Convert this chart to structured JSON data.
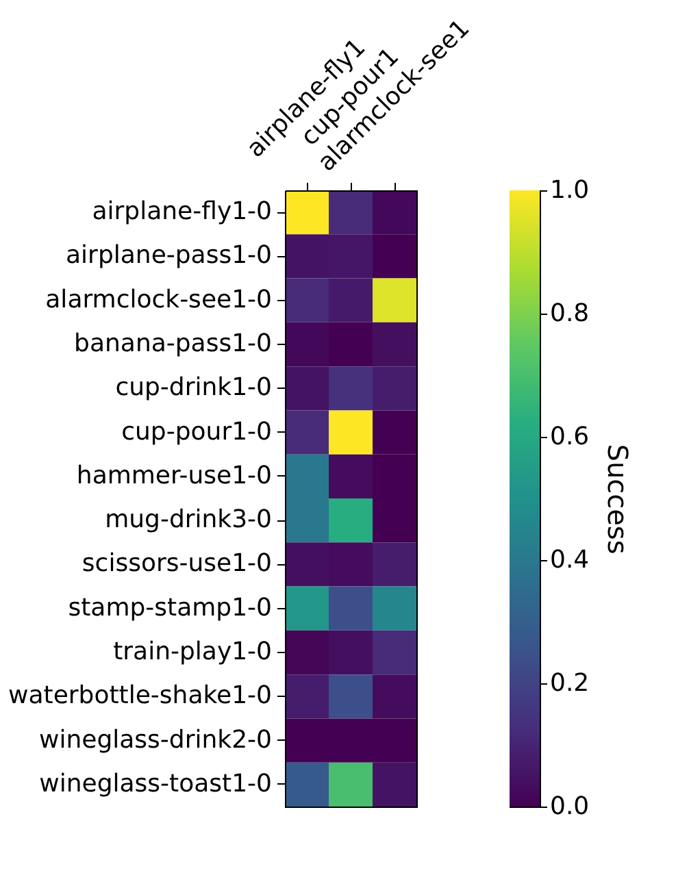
{
  "chart_data": {
    "type": "heatmap",
    "categories": [
      "airplane-fly1",
      "cup-pour1",
      "alarmclock-see1"
    ],
    "y_categories": [
      "airplane-fly1-0",
      "airplane-pass1-0",
      "alarmclock-see1-0",
      "banana-pass1-0",
      "cup-drink1-0",
      "cup-pour1-0",
      "hammer-use1-0",
      "mug-drink3-0",
      "scissors-use1-0",
      "stamp-stamp1-0",
      "train-play1-0",
      "waterbottle-shake1-0",
      "wineglass-drink2-0",
      "wineglass-toast1-0"
    ],
    "cells": [
      [
        1.0,
        0.12,
        0.02
      ],
      [
        0.05,
        0.06,
        0.0
      ],
      [
        0.12,
        0.07,
        0.95
      ],
      [
        0.02,
        0.0,
        0.04
      ],
      [
        0.05,
        0.14,
        0.08
      ],
      [
        0.12,
        1.0,
        0.0
      ],
      [
        0.4,
        0.03,
        0.0
      ],
      [
        0.4,
        0.62,
        0.0
      ],
      [
        0.04,
        0.03,
        0.08
      ],
      [
        0.52,
        0.24,
        0.46
      ],
      [
        0.01,
        0.04,
        0.12
      ],
      [
        0.08,
        0.24,
        0.03
      ],
      [
        0.0,
        0.0,
        0.0
      ],
      [
        0.28,
        0.7,
        0.05
      ]
    ],
    "clabel": "Success",
    "clim": [
      0,
      1
    ],
    "cticks": [
      {
        "value": 0,
        "label": "0.0"
      },
      {
        "value": 0.2,
        "label": "0.2"
      },
      {
        "value": 0.4,
        "label": "0.4"
      },
      {
        "value": 0.6,
        "label": "0.6"
      },
      {
        "value": 0.8,
        "label": "0.8"
      },
      {
        "value": 1,
        "label": "1.0"
      }
    ]
  }
}
